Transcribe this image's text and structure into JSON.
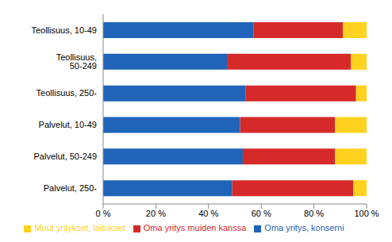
{
  "chart_data": {
    "type": "bar",
    "orientation": "horizontal",
    "stacked": true,
    "grid": false,
    "legend": "bottom",
    "categories": [
      "Teollisuus, 10-49",
      "Teollisuus, 50-249",
      "Teollisuus, 250-",
      "Palvelut, 10-49",
      "Palvelut, 50-249",
      "Palvelut, 250-"
    ],
    "series": [
      {
        "name": "Oma yritys, konserni",
        "color": "#1f64b8",
        "values": [
          57,
          47,
          54,
          52,
          53,
          49
        ]
      },
      {
        "name": "Oma yritys muiden kanssa",
        "color": "#d62a2a",
        "values": [
          34,
          47,
          42,
          36,
          35,
          46
        ]
      },
      {
        "name": "Muut yritykset, laitokset",
        "color": "#ffd21f",
        "values": [
          9,
          6,
          4,
          12,
          12,
          5
        ]
      }
    ],
    "xlim": [
      0,
      100
    ],
    "xticks": [
      {
        "value": 0,
        "label": "0 %"
      },
      {
        "value": 20,
        "label": "20 %"
      },
      {
        "value": 40,
        "label": "40 %"
      },
      {
        "value": 60,
        "label": "60 %"
      },
      {
        "value": 80,
        "label": "80 %"
      },
      {
        "value": 100,
        "label": "100 %"
      }
    ]
  }
}
